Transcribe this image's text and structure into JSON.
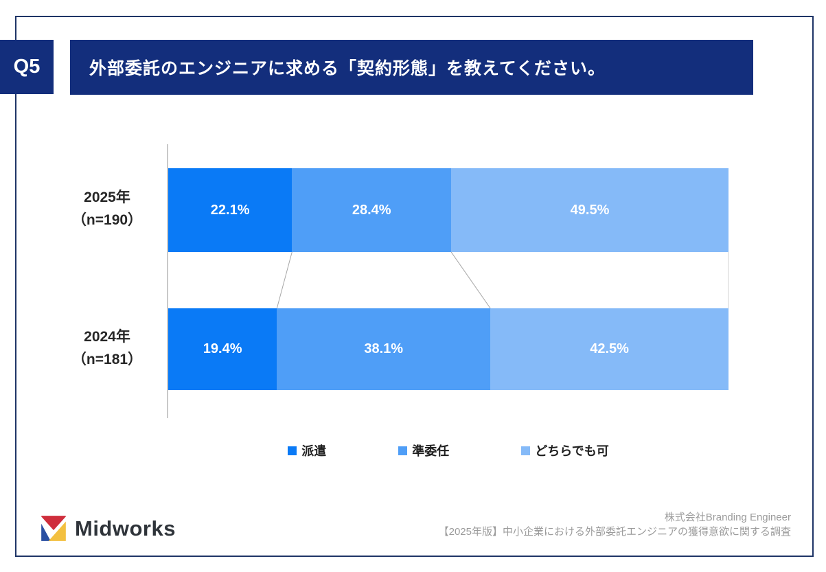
{
  "question": {
    "badge": "Q5",
    "title": "外部委託のエンジニアに求める「契約形態」を教えてください。"
  },
  "chart_data": {
    "type": "bar",
    "orientation": "horizontal",
    "stacked": "100-percent",
    "rows": [
      {
        "year": "2025年",
        "n": "（n=190）"
      },
      {
        "year": "2024年",
        "n": "（n=181）"
      }
    ],
    "series": [
      {
        "name": "派遣",
        "color": "#0a7af6",
        "values": [
          22.1,
          19.4
        ]
      },
      {
        "name": "準委任",
        "color": "#4f9ef7",
        "values": [
          28.4,
          38.1
        ]
      },
      {
        "name": "どちらでも可",
        "color": "#85baf8",
        "values": [
          49.5,
          42.5
        ]
      }
    ],
    "value_suffix": "%",
    "xlim": [
      0,
      100
    ],
    "legend_position": "bottom",
    "grid": false
  },
  "footer": {
    "logo_text": "Midworks",
    "source_line1": "株式会社Branding Engineer",
    "source_line2": "【2025年版】中小企業における外部委託エンジニアの獲得意欲に関する調査"
  },
  "colors": {
    "navy": "#132e7c",
    "frame_border": "#1e3466",
    "axis_line": "#c9c9c9",
    "connector_line": "#a6a6a6",
    "logo_red": "#cf2e3c",
    "logo_blue": "#2a4fa2",
    "logo_yellow": "#f3c040"
  }
}
